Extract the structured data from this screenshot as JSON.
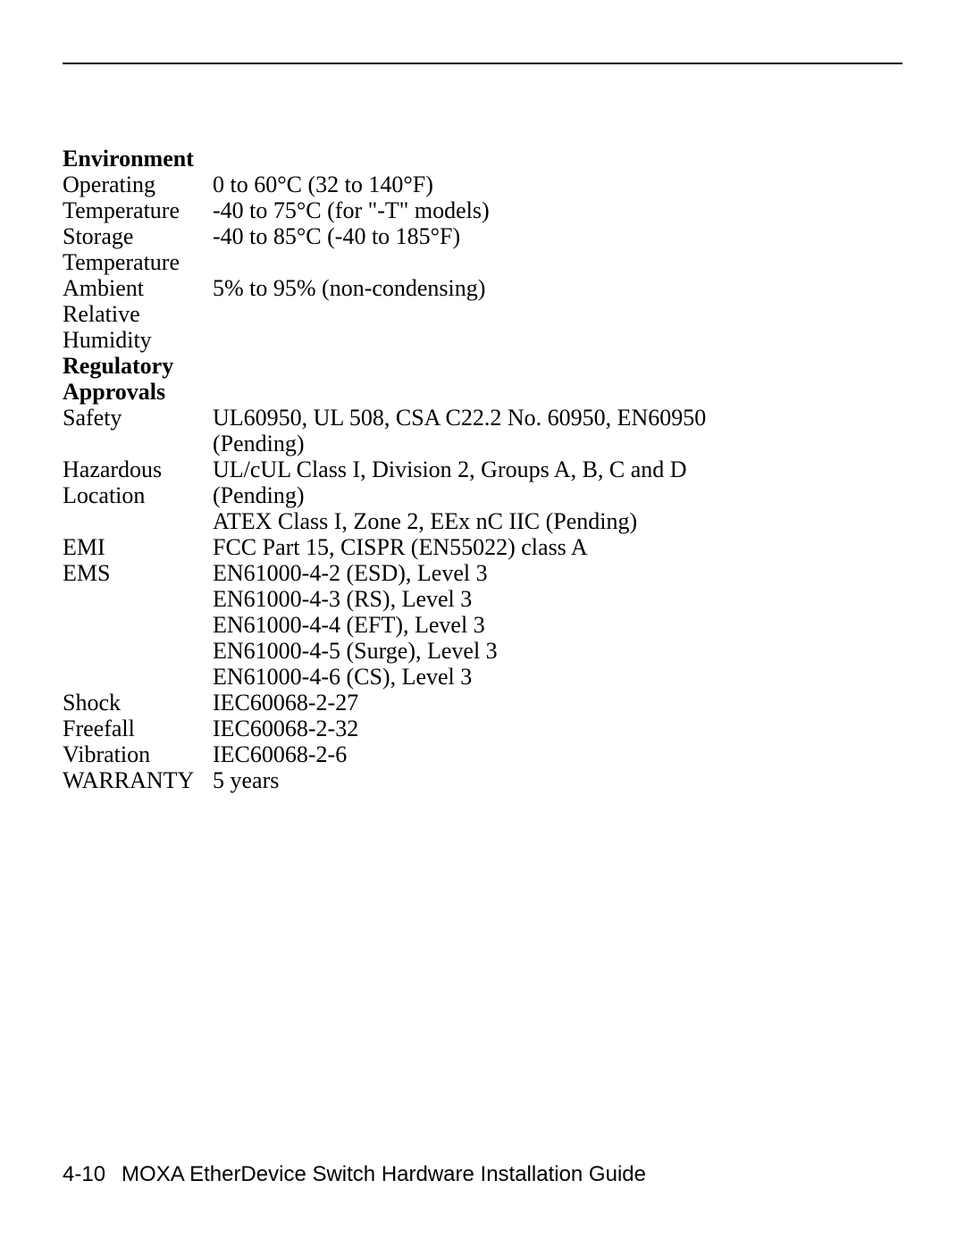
{
  "sections": [
    {
      "heading": "Environment",
      "rows": [
        {
          "label": "Operating\nTemperature",
          "value": "0 to 60°C (32 to 140°F)\n-40 to 75°C (for \"-T\" models)"
        },
        {
          "label": "Storage\nTemperature",
          "value": "-40 to 85°C (-40 to 185°F)"
        },
        {
          "label": "Ambient Relative\nHumidity",
          "value": "5% to 95% (non-condensing)"
        }
      ]
    },
    {
      "heading": "Regulatory\nApprovals",
      "rows": [
        {
          "label": "Safety",
          "value": "UL60950, UL 508, CSA C22.2 No. 60950, EN60950\n(Pending)"
        },
        {
          "label": "Hazardous\nLocation",
          "value": "UL/cUL Class I, Division 2, Groups A, B, C and D\n(Pending)\nATEX Class I, Zone 2, EEx nC IIC (Pending)"
        },
        {
          "label": "EMI",
          "value": "FCC Part 15, CISPR (EN55022) class A"
        },
        {
          "label": "EMS",
          "value": "EN61000-4-2 (ESD), Level 3\nEN61000-4-3 (RS), Level 3\nEN61000-4-4 (EFT), Level 3\nEN61000-4-5 (Surge), Level 3\nEN61000-4-6 (CS), Level 3"
        },
        {
          "label": "Shock",
          "value": "IEC60068-2-27"
        },
        {
          "label": "Freefall",
          "value": "IEC60068-2-32"
        },
        {
          "label": "Vibration",
          "value": "IEC60068-2-6"
        },
        {
          "label": "WARRANTY",
          "value": "5 years"
        }
      ]
    }
  ],
  "footer": {
    "page_number": "4-10",
    "title": "MOXA EtherDevice Switch Hardware Installation Guide"
  }
}
